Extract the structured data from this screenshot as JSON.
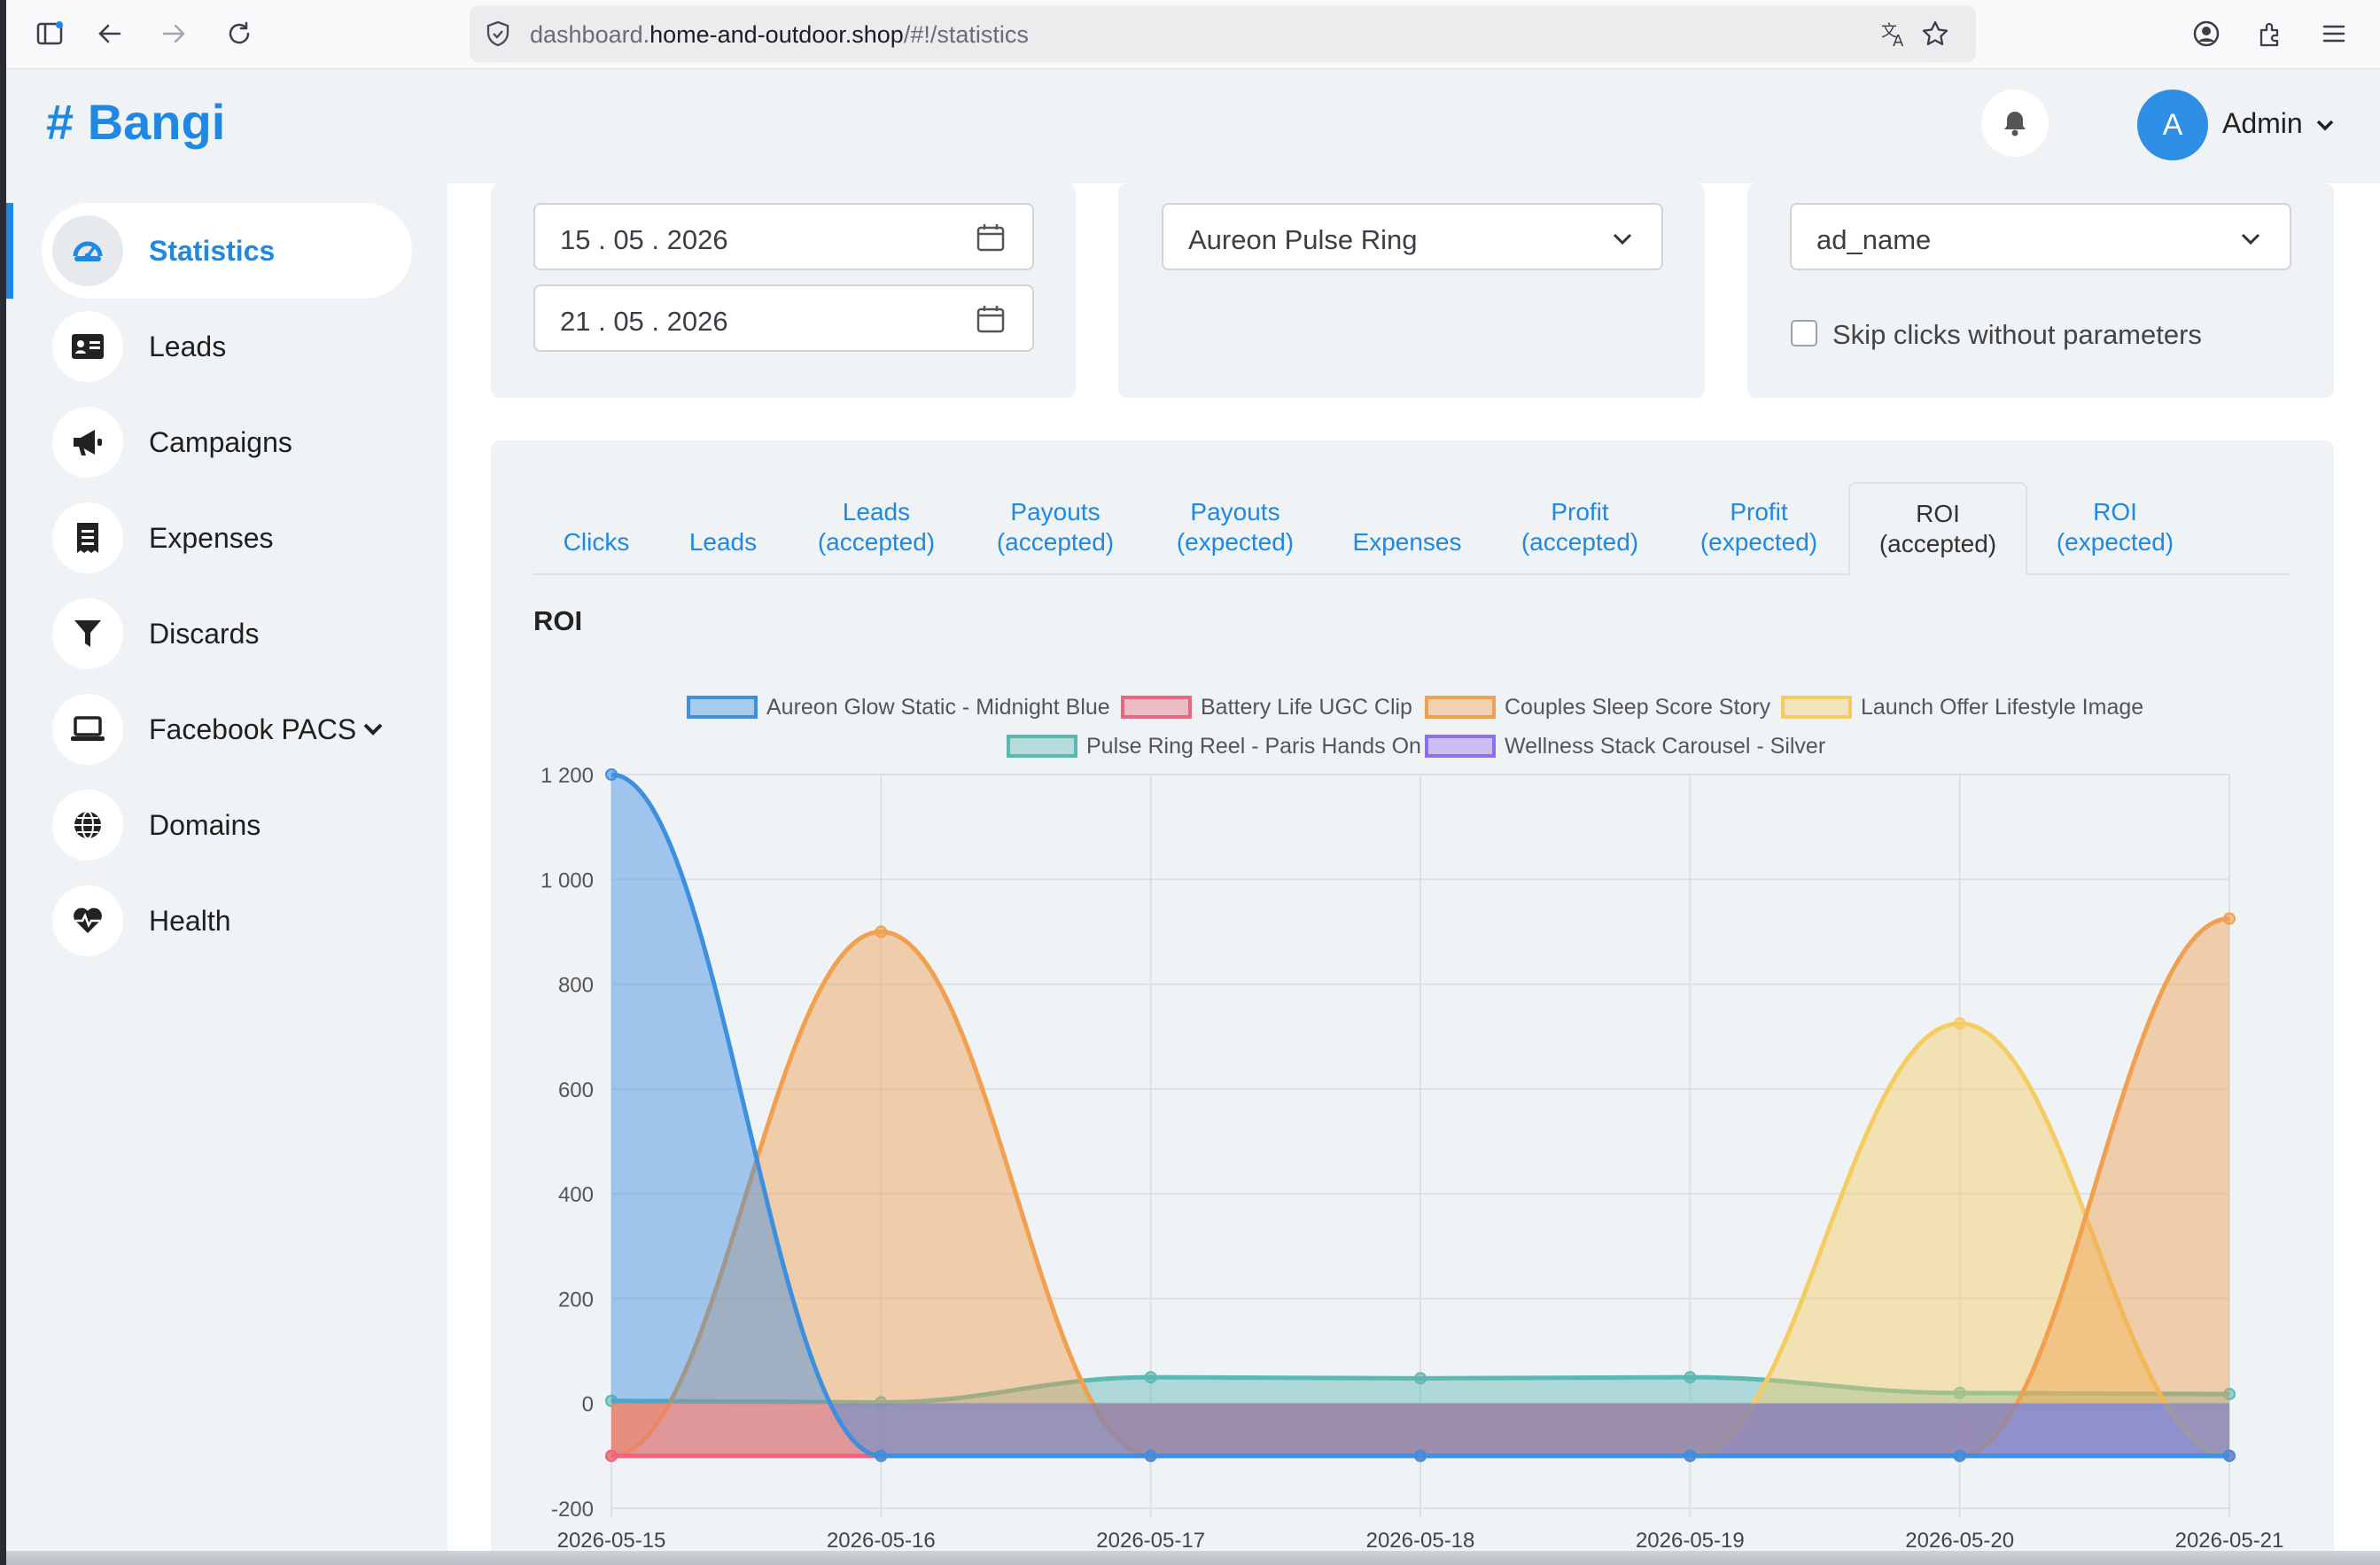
{
  "browser": {
    "url_prefix": "dashboard.",
    "url_domain": "home-and-outdoor.shop",
    "url_path": "/#!/statistics"
  },
  "header": {
    "brand": "# Bangi",
    "avatar_letter": "A",
    "user_label": "Admin"
  },
  "sidebar": {
    "items": [
      {
        "label": "Statistics",
        "icon": "dashboard-icon",
        "active": true
      },
      {
        "label": "Leads",
        "icon": "id-card-icon"
      },
      {
        "label": "Campaigns",
        "icon": "megaphone-icon"
      },
      {
        "label": "Expenses",
        "icon": "receipt-icon"
      },
      {
        "label": "Discards",
        "icon": "filter-icon"
      },
      {
        "label": "Facebook PACS",
        "icon": "laptop-icon",
        "has_submenu": true
      },
      {
        "label": "Domains",
        "icon": "globe-icon"
      },
      {
        "label": "Health",
        "icon": "heart-pulse-icon"
      }
    ]
  },
  "filters": {
    "date_from": "15 . 05 . 2026",
    "date_to": "21 . 05 . 2026",
    "product_select": "Aureon Pulse Ring",
    "group_by_select": "ad_name",
    "skip_clicks_label": "Skip clicks without parameters",
    "skip_clicks_checked": false
  },
  "tabs": [
    {
      "line1": "Clicks",
      "line2": ""
    },
    {
      "line1": "Leads",
      "line2": ""
    },
    {
      "line1": "Leads",
      "line2": "(accepted)"
    },
    {
      "line1": "Payouts",
      "line2": "(accepted)"
    },
    {
      "line1": "Payouts",
      "line2": "(expected)"
    },
    {
      "line1": "Expenses",
      "line2": ""
    },
    {
      "line1": "Profit",
      "line2": "(accepted)"
    },
    {
      "line1": "Profit",
      "line2": "(expected)"
    },
    {
      "line1": "ROI",
      "line2": "(accepted)",
      "active": true
    },
    {
      "line1": "ROI",
      "line2": "(expected)"
    }
  ],
  "section_title": "ROI",
  "chart_data": {
    "type": "area",
    "title": "",
    "xlabel": "",
    "ylabel": "",
    "x": [
      "2026-05-15",
      "2026-05-16",
      "2026-05-17",
      "2026-05-18",
      "2026-05-19",
      "2026-05-20",
      "2026-05-21"
    ],
    "ylim": [
      -200,
      1200
    ],
    "yticks": [
      -200,
      0,
      200,
      400,
      600,
      800,
      1000,
      1200
    ],
    "ytick_labels": [
      "-200",
      "0",
      "200",
      "400",
      "600",
      "800",
      "1 000",
      "1 200"
    ],
    "grid": true,
    "legend_position": "top",
    "series": [
      {
        "name": "Aureon Glow Static - Midnight Blue",
        "color": "#3d8fe0",
        "values": [
          1200,
          -100,
          -100,
          -100,
          -100,
          -100,
          -100
        ]
      },
      {
        "name": "Battery Life UGC Clip",
        "color": "#e8677e",
        "values": [
          -100,
          -100,
          -100,
          -100,
          -100,
          -100,
          -100
        ]
      },
      {
        "name": "Couples Sleep Score Story",
        "color": "#f0a04e",
        "values": [
          -100,
          900,
          -100,
          -100,
          -100,
          -100,
          925
        ]
      },
      {
        "name": "Launch Offer Lifestyle Image",
        "color": "#f5cc62",
        "values": [
          -100,
          -100,
          -100,
          -100,
          -100,
          725,
          -100
        ]
      },
      {
        "name": "Pulse Ring Reel - Paris Hands On",
        "color": "#5cb8b2",
        "values": [
          5,
          2,
          50,
          48,
          50,
          20,
          18
        ]
      },
      {
        "name": "Wellness Stack Carousel - Silver",
        "color": "#8f6fe8",
        "values": [
          -100,
          -100,
          -100,
          -100,
          -100,
          -100,
          -100
        ]
      }
    ]
  }
}
